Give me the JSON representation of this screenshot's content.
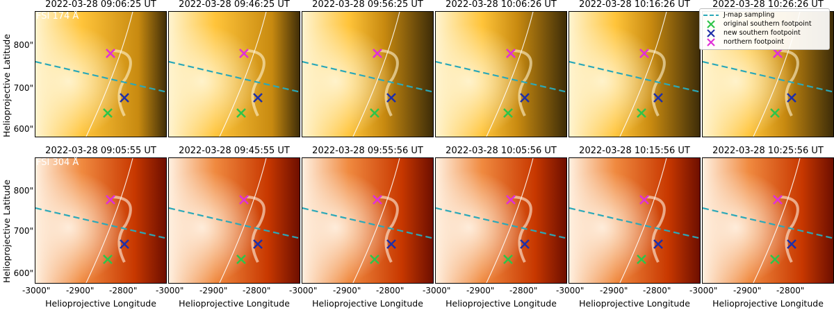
{
  "figure": {
    "ylabel": "Helioprojective Latitude",
    "xlabel": "Helioprojective Longitude"
  },
  "rows": [
    {
      "channel_label": "FSI 174 Å",
      "titles": [
        "2022-03-28 09:06:25 UT",
        "2022-03-28 09:46:25 UT",
        "2022-03-28 09:56:25 UT",
        "2022-03-28 10:06:26 UT",
        "2022-03-28 10:16:26 UT",
        "2022-03-28 10:26:26 UT"
      ],
      "yticks": [
        "800\"",
        "700\"",
        "600\""
      ]
    },
    {
      "channel_label": "FSI 304 Å",
      "titles": [
        "2022-03-28 09:05:55 UT",
        "2022-03-28 09:45:55 UT",
        "2022-03-28 09:55:56 UT",
        "2022-03-28 10:05:56 UT",
        "2022-03-28 10:15:56 UT",
        "2022-03-28 10:25:56 UT"
      ],
      "yticks": [
        "800\"",
        "700\"",
        "600\""
      ]
    }
  ],
  "xticks": [
    "-3000\"",
    "-2900\"",
    "-2800\""
  ],
  "legend": [
    {
      "label": "J-map sampling",
      "color": "#2ba8b8",
      "marker": "dashed-line"
    },
    {
      "label": "original southern footpoint",
      "color": "#2ec44a",
      "marker": "x"
    },
    {
      "label": "new southern footpoint",
      "color": "#1f2fa8",
      "marker": "x"
    },
    {
      "label": "northern footpoint",
      "color": "#e030d8",
      "marker": "x"
    }
  ],
  "colors": {
    "cmap_174": [
      "#3a2a08",
      "#c88a10",
      "#ffc43a",
      "#fff4d0"
    ],
    "cmap_304": [
      "#6a0d00",
      "#c83800",
      "#f08a40",
      "#fff0e0"
    ],
    "jmap": "#2ba8b8",
    "orig_south": "#2ec44a",
    "new_south": "#1f2fa8",
    "north": "#e030d8"
  }
}
